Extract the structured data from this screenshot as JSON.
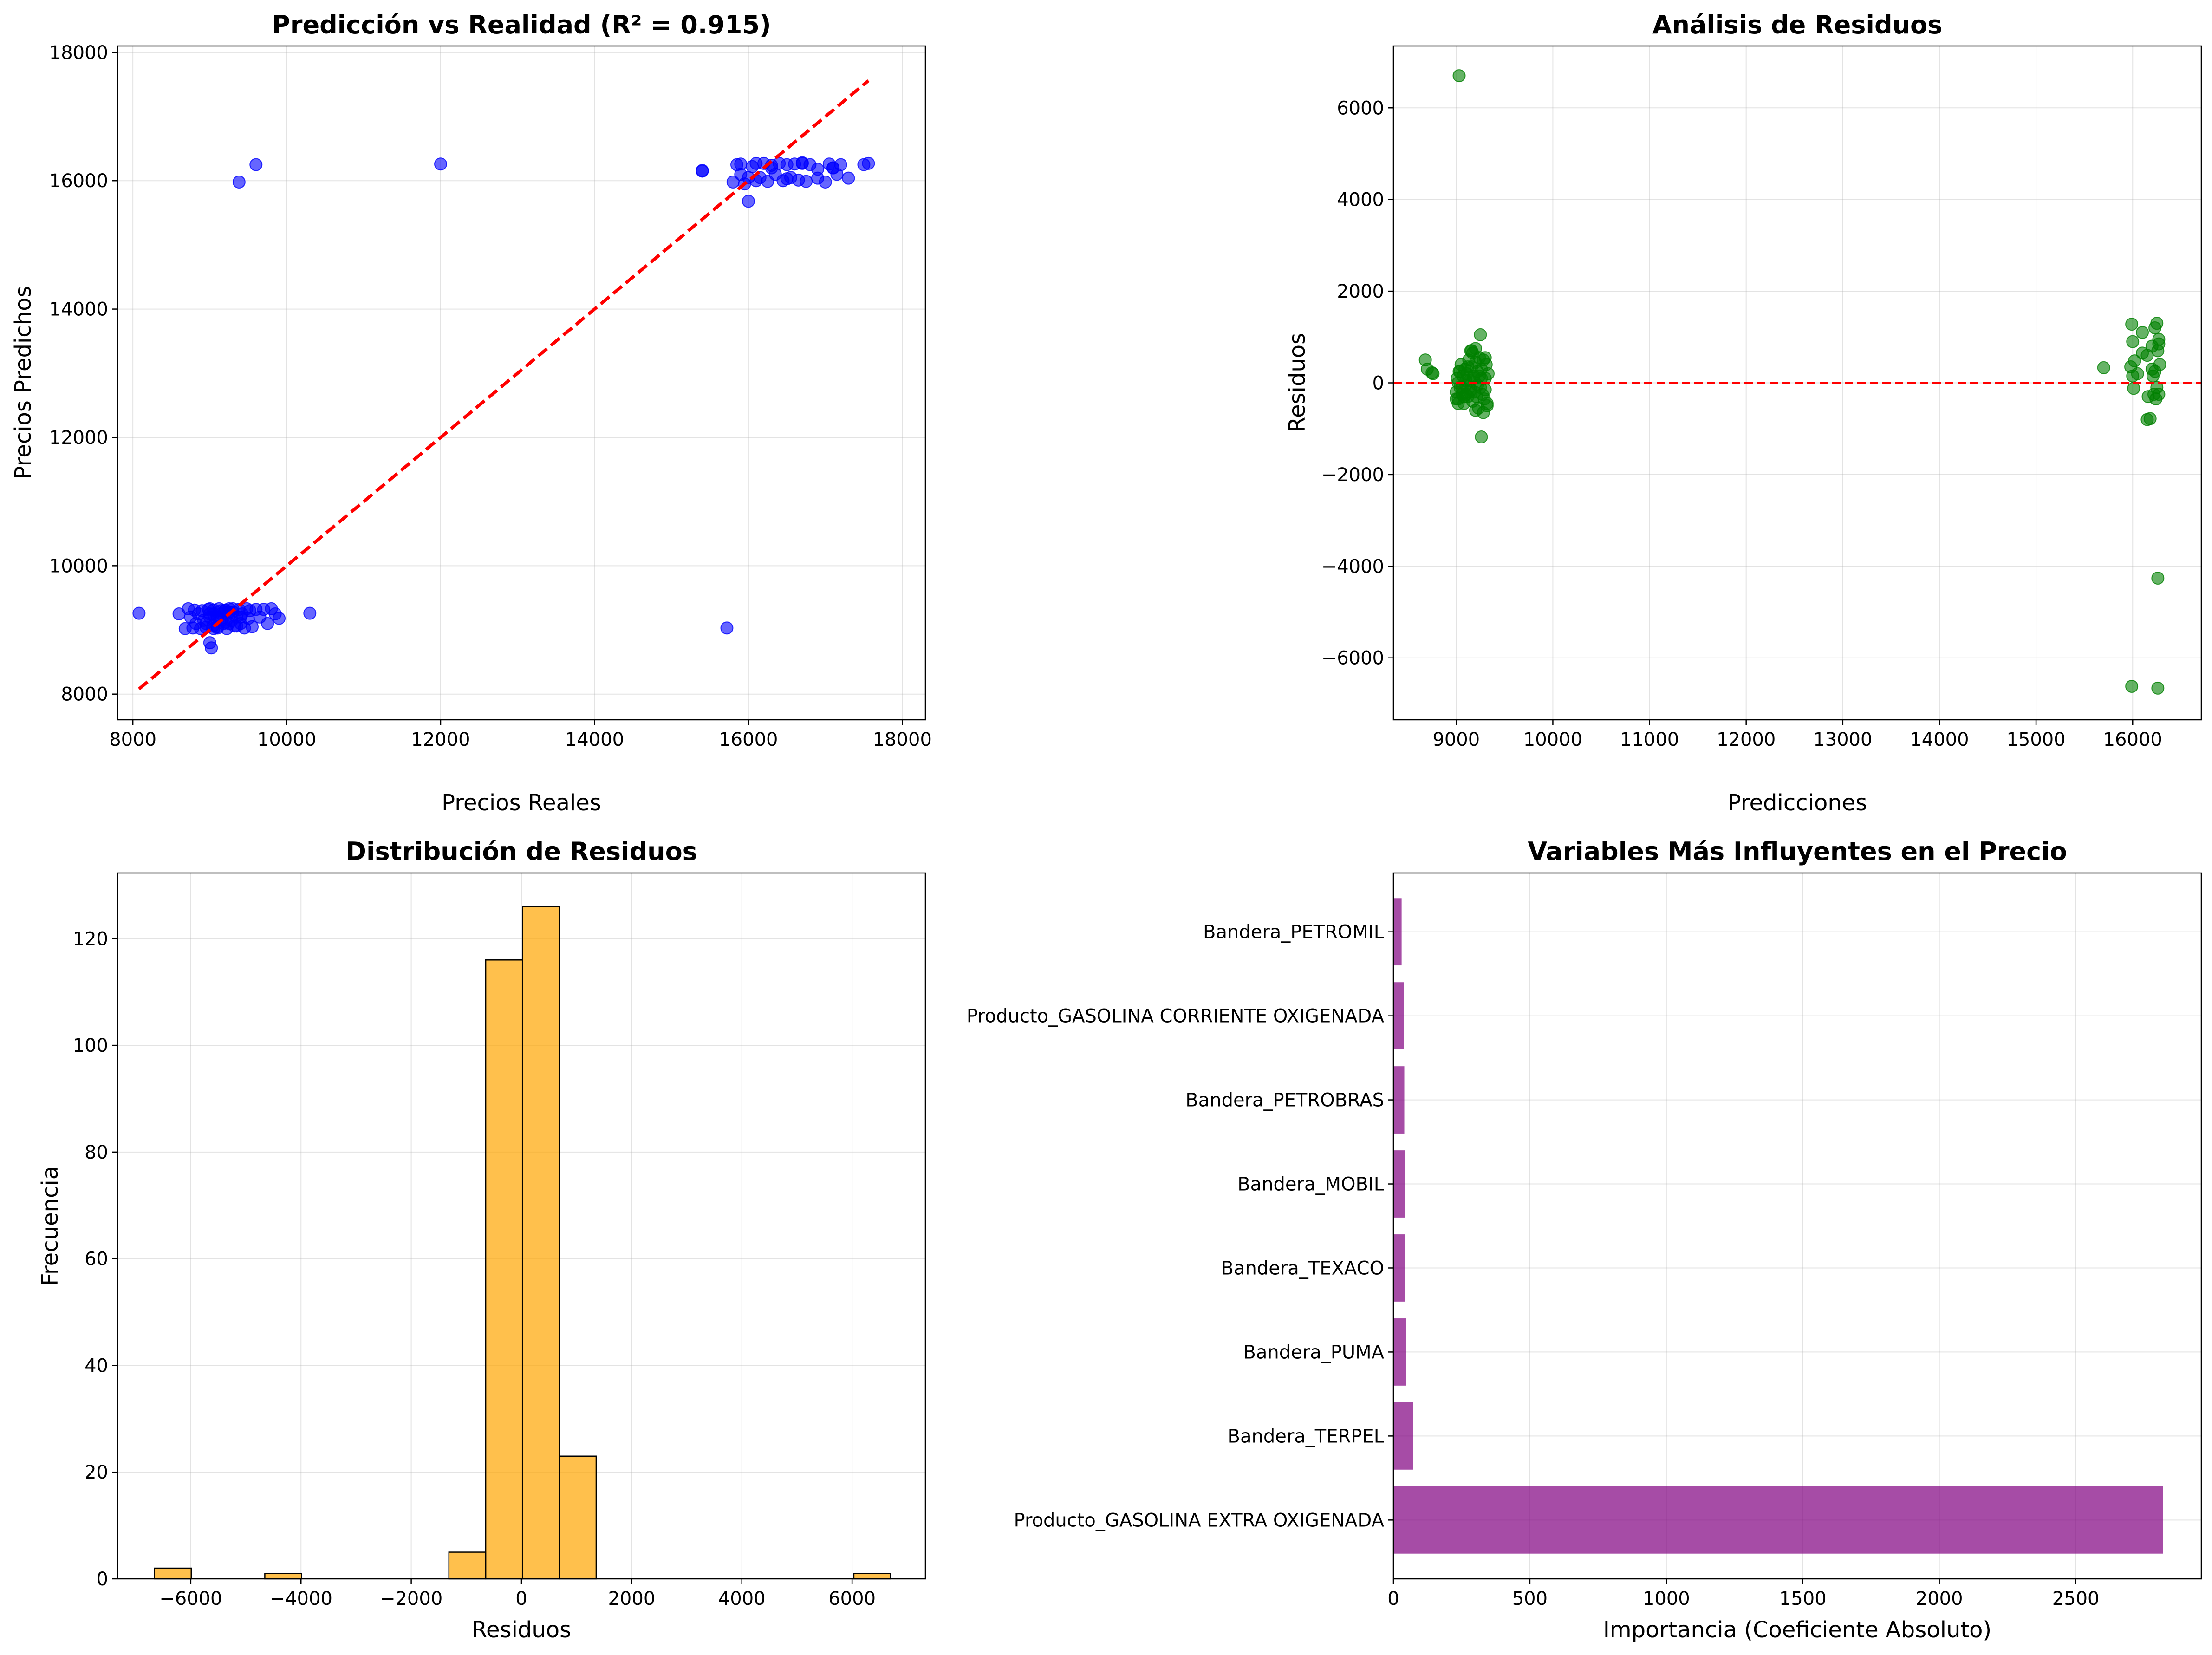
{
  "chart_data": [
    {
      "type": "scatter",
      "title": "Predicción vs Realidad (R² = 0.915)",
      "xlabel": "Precios Reales",
      "ylabel": "Precios Predichos",
      "xlim": [
        7800,
        18300
      ],
      "ylim": [
        7600,
        18100
      ],
      "xticks": [
        8000,
        10000,
        12000,
        14000,
        16000,
        18000
      ],
      "yticks": [
        8000,
        10000,
        12000,
        14000,
        16000,
        18000
      ],
      "grid": true,
      "point_color": "#0000ff",
      "reference_line": {
        "x": [
          8080,
          17560
        ],
        "y": [
          8080,
          17560
        ],
        "color": "#ff0000",
        "style": "dashed"
      },
      "points": {
        "x": [
          8080,
          8600,
          8680,
          8720,
          8750,
          8780,
          8800,
          8820,
          8850,
          8880,
          8900,
          8920,
          8950,
          8980,
          9000,
          9020,
          9040,
          9050,
          9080,
          9100,
          9120,
          9150,
          9180,
          9200,
          9220,
          9250,
          9280,
          9300,
          9320,
          9350,
          9380,
          9400,
          9420,
          9450,
          9480,
          9500,
          9520,
          9550,
          9600,
          9650,
          9700,
          9750,
          9800,
          9850,
          9900,
          9000,
          9050,
          9100,
          9150,
          9200,
          9250,
          9300,
          9350,
          9400,
          8950,
          9000,
          9100,
          9150,
          9000,
          9200,
          9050,
          9250,
          10300,
          9380,
          9600,
          12000,
          15720,
          15400,
          15400,
          15800,
          15850,
          15900,
          15950,
          16000,
          16050,
          16100,
          16150,
          16200,
          16250,
          16300,
          16350,
          16400,
          16450,
          16500,
          16550,
          16600,
          16650,
          16700,
          16750,
          16800,
          16900,
          17000,
          17050,
          17100,
          17150,
          17200,
          17300,
          17500,
          17560,
          15900,
          16000,
          16100,
          16300,
          16500,
          16700,
          16900,
          17100
        ],
        "y": [
          9260,
          9250,
          9020,
          9330,
          9200,
          9030,
          9310,
          9100,
          9250,
          9020,
          9300,
          9150,
          9040,
          9320,
          9200,
          8720,
          9060,
          9310,
          9180,
          9030,
          9330,
          9250,
          9100,
          9310,
          9020,
          9280,
          9140,
          9330,
          9060,
          9200,
          9320,
          9100,
          9250,
          9030,
          9330,
          9180,
          9300,
          9050,
          9320,
          9200,
          9320,
          9100,
          9330,
          9250,
          9180,
          8800,
          9250,
          9200,
          9150,
          9300,
          9100,
          9280,
          9060,
          9200,
          9100,
          9250,
          9050,
          9300,
          9330,
          9120,
          9020,
          9330,
          9260,
          15980,
          16250,
          16260,
          9030,
          16150,
          16160,
          15980,
          16250,
          16100,
          15950,
          15680,
          16220,
          16000,
          16050,
          16270,
          15990,
          16240,
          16100,
          16270,
          16000,
          16250,
          16050,
          16260,
          16010,
          16280,
          15990,
          16250,
          16180,
          15980,
          16260,
          16200,
          16100,
          16250,
          16040,
          16250,
          16270,
          16260,
          16050,
          16270,
          16200,
          16030,
          16270,
          16040,
          16200
        ]
      }
    },
    {
      "type": "scatter",
      "title": "Análisis de Residuos",
      "xlabel": "Predicciones",
      "ylabel": "Residuos",
      "xlim": [
        8350,
        16710
      ],
      "ylim": [
        -7350,
        7350
      ],
      "xticks": [
        9000,
        10000,
        11000,
        12000,
        13000,
        14000,
        15000,
        16000
      ],
      "yticks": [
        -6000,
        -4000,
        -2000,
        0,
        2000,
        4000,
        6000
      ],
      "grid": true,
      "point_color": "#008000",
      "reference_line": {
        "y": 0,
        "color": "#ff0000",
        "style": "dashed"
      },
      "points": {
        "x": [
          8680,
          8700,
          8750,
          8760,
          9000,
          9010,
          9020,
          9030,
          9040,
          9050,
          9060,
          9070,
          9080,
          9090,
          9100,
          9110,
          9120,
          9130,
          9140,
          9150,
          9160,
          9170,
          9180,
          9190,
          9200,
          9210,
          9220,
          9230,
          9240,
          9250,
          9260,
          9270,
          9280,
          9290,
          9300,
          9310,
          9320,
          9330,
          9020,
          9060,
          9100,
          9140,
          9180,
          9220,
          9260,
          9300,
          9040,
          9080,
          9120,
          9160,
          9200,
          9240,
          9280,
          9320,
          9030,
          9250,
          9260,
          9150,
          9170,
          9000,
          9100,
          9200,
          9300,
          9020,
          15700,
          15980,
          15990,
          16000,
          16010,
          16020,
          16050,
          16100,
          16150,
          16160,
          16180,
          16200,
          16210,
          16220,
          16230,
          16240,
          16250,
          16260,
          16270,
          16280,
          16000,
          16100,
          16200,
          16250,
          16150,
          16230,
          16260,
          16270,
          16270,
          15990,
          16260
        ],
        "y": [
          500,
          300,
          220,
          200,
          -200,
          100,
          -350,
          250,
          -100,
          400,
          -250,
          150,
          -450,
          300,
          -50,
          200,
          -300,
          500,
          50,
          -150,
          350,
          -400,
          100,
          -200,
          450,
          -300,
          250,
          -550,
          150,
          -100,
          300,
          -250,
          500,
          -350,
          100,
          400,
          -450,
          200,
          0,
          -100,
          50,
          -200,
          150,
          -50,
          100,
          -150,
          250,
          -300,
          350,
          700,
          750,
          550,
          -650,
          -500,
          6700,
          1050,
          -1180,
          700,
          650,
          -350,
          -250,
          -600,
          550,
          -450,
          330,
          350,
          1280,
          150,
          -120,
          480,
          200,
          1100,
          600,
          -300,
          -780,
          800,
          150,
          -250,
          1200,
          -350,
          1300,
          700,
          950,
          400,
          900,
          650,
          300,
          -100,
          -800,
          250,
          -4260,
          850,
          -250,
          -6620,
          -6660
        ]
      }
    },
    {
      "type": "bar",
      "title": "Distribución de Residuos",
      "xlabel": "Residuos",
      "ylabel": "Frecuencia",
      "xlim": [
        -7330,
        7330
      ],
      "ylim": [
        0,
        132.3
      ],
      "xticks": [
        -6000,
        -4000,
        -2000,
        0,
        2000,
        4000,
        6000
      ],
      "yticks": [
        0,
        20,
        40,
        60,
        80,
        100,
        120
      ],
      "grid": true,
      "bar_color": "#ffa500",
      "bin_edges": [
        -6660,
        -5992,
        -5324,
        -4656,
        -3988,
        -3320,
        -2652,
        -1984,
        -1316,
        -648,
        20,
        688,
        1356,
        2024,
        2692,
        3360,
        4028,
        4696,
        5364,
        6032,
        6700
      ],
      "values": [
        2,
        0,
        0,
        1,
        0,
        0,
        0,
        0,
        5,
        116,
        126,
        23,
        0,
        0,
        0,
        0,
        0,
        0,
        0,
        1
      ]
    },
    {
      "type": "bar",
      "orientation": "horizontal",
      "title": "Variables Más Influyentes en el Precio",
      "xlabel": "Importancia (Coeficiente Absoluto)",
      "ylabel": "",
      "xlim": [
        0,
        2960
      ],
      "xticks": [
        0,
        500,
        1000,
        1500,
        2000,
        2500
      ],
      "grid": true,
      "bar_color": "#800080",
      "categories": [
        "Producto_GASOLINA EXTRA OXIGENADA",
        "Bandera_TERPEL",
        "Bandera_PUMA",
        "Bandera_TEXACO",
        "Bandera_MOBIL",
        "Bandera_PETROBRAS",
        "Producto_GASOLINA CORRIENTE OXIGENADA",
        "Bandera_PETROMIL"
      ],
      "values": [
        2820,
        72,
        46,
        44,
        42,
        40,
        38,
        30
      ]
    }
  ]
}
